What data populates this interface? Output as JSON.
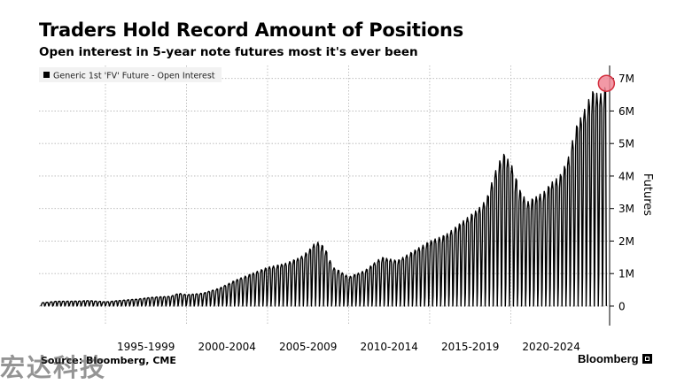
{
  "chart_data": {
    "type": "area",
    "title": "Traders Hold Record Amount of Positions",
    "subtitle": "Open interest in 5-year note futures most it's ever been",
    "ylabel": "Futures",
    "ylim": [
      -0.6,
      7.4
    ],
    "y_ticks": [
      0,
      1,
      2,
      3,
      4,
      5,
      6,
      7
    ],
    "y_tick_labels": [
      "0",
      "1M",
      "2M",
      "3M",
      "4M",
      "5M",
      "6M",
      "7M"
    ],
    "y_axis_side": "right",
    "x_range": [
      1990.4,
      2025.6
    ],
    "x_tick_labels": [
      "1995-1999",
      "2000-2004",
      "2005-2009",
      "2010-2014",
      "2015-2019",
      "2020-2024"
    ],
    "x_tick_centers": [
      1997,
      2002,
      2007,
      2012,
      2017,
      2022
    ],
    "grid": true,
    "legend": {
      "position": "top-left",
      "label": "Generic 1st 'FV' Future - Open Interest"
    },
    "series": [
      {
        "name": "Generic 1st 'FV' Future - Open Interest",
        "unit": "million contracts",
        "x": [
          1990.5,
          1991.5,
          1992.5,
          1993.5,
          1994.5,
          1995.5,
          1996.5,
          1997.5,
          1998.5,
          1999.0,
          1999.5,
          2000.5,
          2001.5,
          2002.5,
          2003.5,
          2004.5,
          2005.5,
          2006.5,
          2007.0,
          2007.5,
          2008.0,
          2008.5,
          2009.5,
          2010.5,
          2011.5,
          2012.5,
          2013.5,
          2014.5,
          2015.5,
          2016.5,
          2017.5,
          2018.0,
          2018.5,
          2019.0,
          2019.5,
          2020.0,
          2020.5,
          2021.5,
          2022.0,
          2022.5,
          2023.0,
          2023.5,
          2024.0,
          2024.5,
          2025.0,
          2025.4
        ],
        "peak_values": [
          0.1,
          0.15,
          0.15,
          0.17,
          0.13,
          0.18,
          0.22,
          0.28,
          0.3,
          0.4,
          0.35,
          0.4,
          0.55,
          0.8,
          1.0,
          1.2,
          1.3,
          1.5,
          1.7,
          2.0,
          1.8,
          1.2,
          0.9,
          1.1,
          1.5,
          1.4,
          1.7,
          2.0,
          2.2,
          2.6,
          3.0,
          3.3,
          4.1,
          4.7,
          4.4,
          3.6,
          3.2,
          3.5,
          3.8,
          4.0,
          4.5,
          5.5,
          6.0,
          6.6,
          6.5,
          6.8
        ],
        "trough_value": 0
      }
    ],
    "highlight": {
      "x": 2025.4,
      "y": 6.85
    }
  },
  "footer": {
    "source": "Source: Bloomberg, CME",
    "brand": "Bloomberg"
  },
  "watermark": {
    "text": "宏达科技"
  },
  "colors": {
    "line": "#000000",
    "grid": "#b4b4b4",
    "highlight": "#f08796",
    "highlight_stroke": "#d22d3c"
  }
}
